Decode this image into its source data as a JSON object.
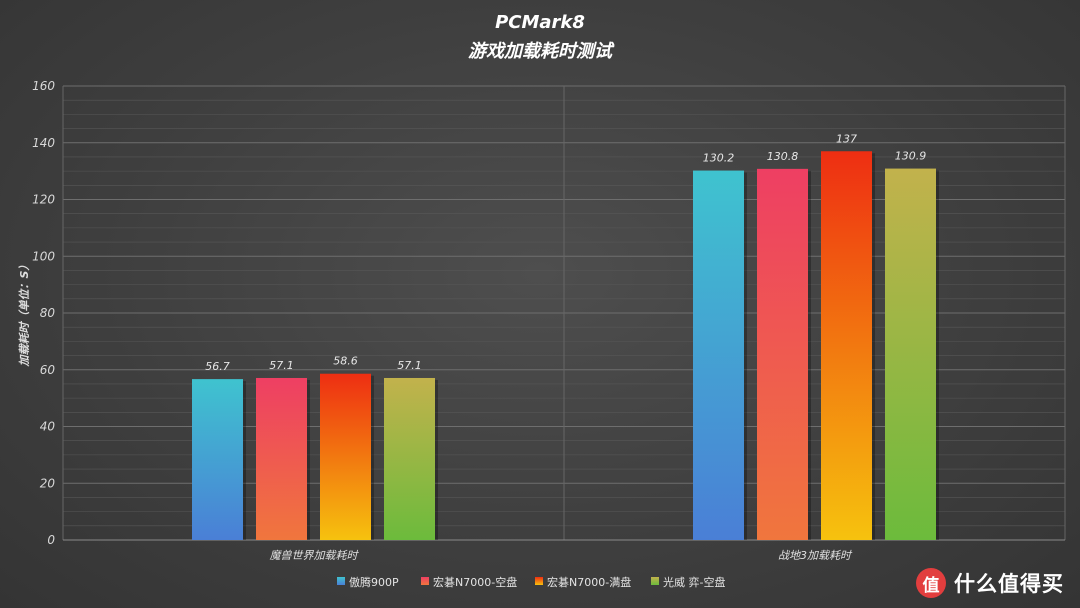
{
  "chart_data": {
    "type": "bar",
    "title": "PCMark8",
    "subtitle": "游戏加载耗时测试",
    "ylabel": "加载耗时（单位：S）",
    "xlabel": "",
    "ylim": [
      0,
      160
    ],
    "yticks": [
      0,
      20,
      40,
      60,
      80,
      100,
      120,
      140,
      160
    ],
    "grid": true,
    "legend_position": "bottom",
    "categories": [
      "魔兽世界加载耗时",
      "战地3加载耗时"
    ],
    "series": [
      {
        "name": "傲腾900P",
        "values": [
          56.7,
          130.2
        ],
        "labels": [
          "56.7",
          "130.2"
        ],
        "color": "#3fc3cf",
        "color2": "#4a7fd6"
      },
      {
        "name": "宏碁N7000-空盘",
        "values": [
          57.1,
          130.8
        ],
        "labels": [
          "57.1",
          "130.8"
        ],
        "color": "#ee3f63",
        "color2": "#f0763d"
      },
      {
        "name": "宏碁N7000-满盘",
        "values": [
          58.6,
          137
        ],
        "labels": [
          "58.6",
          "137"
        ],
        "color": "#ee2e12",
        "color2": "#f6c20e"
      },
      {
        "name": "光威 弈-空盘",
        "values": [
          57.1,
          130.9
        ],
        "labels": [
          "57.1",
          "130.9"
        ],
        "color": "#c2b24c",
        "color2": "#6cbb3c"
      }
    ]
  },
  "watermark": {
    "icon_glyph": "值",
    "text": "什么值得买"
  }
}
